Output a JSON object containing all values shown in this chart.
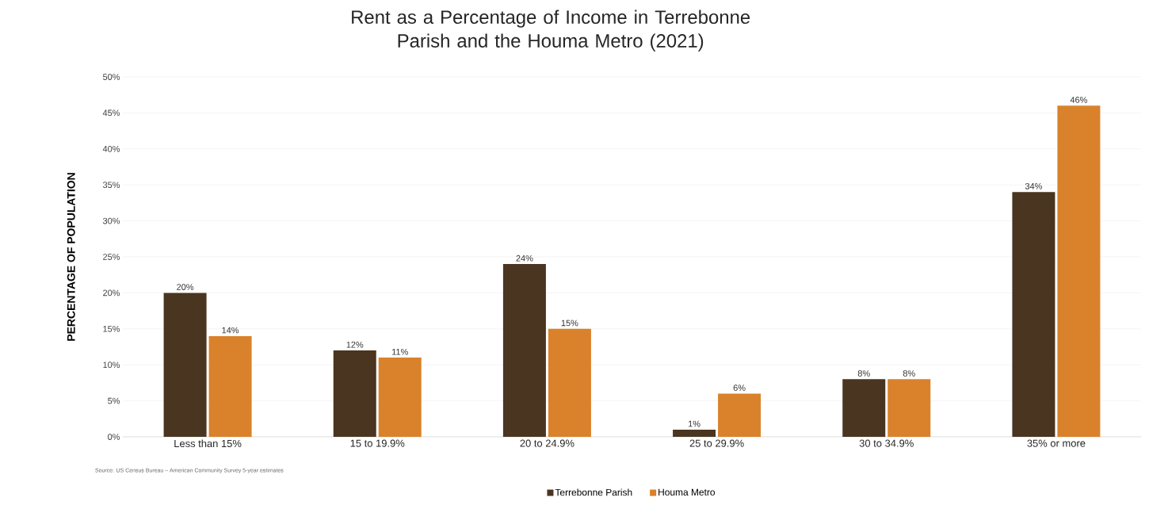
{
  "chart_data": {
    "type": "bar",
    "title": "Rent as a Percentage of Income in Terrebonne Parish and the Houma Metro (2021)",
    "ylabel": "PERCENTAGE OF POPULATION",
    "categories": [
      "Less than 15%",
      "15 to 19.9%",
      "20 to 24.9%",
      "25 to 29.9%",
      "30 to 34.9%",
      "35% or more"
    ],
    "series": [
      {
        "name": "Terrebonne Parish",
        "color": "#4a3520",
        "values": [
          20,
          12,
          24,
          1,
          8,
          34
        ],
        "value_labels": [
          "20%",
          "12%",
          "24%",
          "1%",
          "8%",
          "34%"
        ]
      },
      {
        "name": "Houma Metro",
        "color": "#d9822b",
        "values": [
          14,
          11,
          15,
          6,
          8,
          46
        ],
        "value_labels": [
          "14%",
          "11%",
          "15%",
          "6%",
          "8%",
          "46%"
        ]
      }
    ],
    "ylim": [
      0,
      50
    ],
    "yticks": [
      {
        "value": 0,
        "label": "0%"
      },
      {
        "value": 5,
        "label": "5%"
      },
      {
        "value": 10,
        "label": "10%"
      },
      {
        "value": 15,
        "label": "15%"
      },
      {
        "value": 20,
        "label": "20%"
      },
      {
        "value": 25,
        "label": "25%"
      },
      {
        "value": 30,
        "label": "30%"
      },
      {
        "value": 35,
        "label": "35%"
      },
      {
        "value": 40,
        "label": "40%"
      },
      {
        "value": 45,
        "label": "45%"
      },
      {
        "value": 50,
        "label": "50%"
      }
    ],
    "grid": "y",
    "legend": "bottom",
    "annotations": [
      "Source: US Census Bureau – American Community Survey 5-year estimates"
    ]
  }
}
